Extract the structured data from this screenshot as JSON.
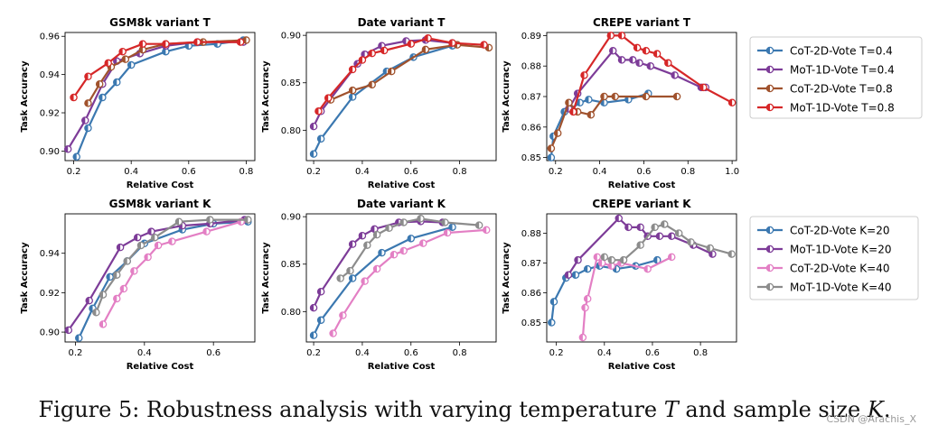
{
  "caption": {
    "prefix": "Figure 5: Robustness analysis with varying temperature ",
    "var_t": "T",
    "middle": " and sample size ",
    "var_k": "K",
    "suffix": "."
  },
  "watermark": "CSDN @Arachis_X",
  "colors": {
    "blue": "#3b78b0",
    "purple": "#7d3c98",
    "orange": "#a0522d",
    "red": "#d62728",
    "pink": "#e37fc4",
    "gray": "#8c8c8c"
  },
  "chart_data": [
    {
      "type": "line",
      "title": "GSM8k variant T",
      "xlabel": "Relative Cost",
      "ylabel": "Task Accuracy",
      "xlim": [
        0.17,
        0.83
      ],
      "ylim": [
        0.895,
        0.962
      ],
      "xticks": [
        0.2,
        0.4,
        0.6,
        0.8
      ],
      "xtick_labels": [
        "0.2",
        "0.4",
        "0.6",
        "0.8"
      ],
      "yticks": [
        0.9,
        0.92,
        0.94,
        0.96
      ],
      "ytick_labels": [
        "0.90",
        "0.92",
        "0.94",
        "0.96"
      ],
      "series": [
        {
          "name": "CoT-2D-Vote T=0.4",
          "color": "blue",
          "x": [
            0.21,
            0.25,
            0.3,
            0.35,
            0.4,
            0.52,
            0.6,
            0.7,
            0.79
          ],
          "y": [
            0.897,
            0.912,
            0.928,
            0.936,
            0.945,
            0.952,
            0.955,
            0.956,
            0.958
          ]
        },
        {
          "name": "MoT-1D-Vote T=0.4",
          "color": "purple",
          "x": [
            0.18,
            0.24,
            0.3,
            0.35,
            0.43,
            0.52,
            0.63,
            0.79
          ],
          "y": [
            0.901,
            0.916,
            0.935,
            0.947,
            0.951,
            0.955,
            0.957,
            0.957
          ]
        },
        {
          "name": "CoT-2D-Vote T=0.8",
          "color": "orange",
          "x": [
            0.25,
            0.29,
            0.33,
            0.38,
            0.44,
            0.52,
            0.65,
            0.8
          ],
          "y": [
            0.925,
            0.935,
            0.944,
            0.948,
            0.953,
            0.956,
            0.957,
            0.958
          ]
        },
        {
          "name": "MoT-1D-Vote T=0.8",
          "color": "red",
          "x": [
            0.2,
            0.25,
            0.32,
            0.37,
            0.44,
            0.52,
            0.63,
            0.78
          ],
          "y": [
            0.928,
            0.939,
            0.946,
            0.952,
            0.956,
            0.956,
            0.957,
            0.957
          ]
        }
      ]
    },
    {
      "type": "line",
      "title": "Date variant T",
      "xlabel": "Relative Cost",
      "ylabel": "Task Accuracy",
      "xlim": [
        0.17,
        0.95
      ],
      "ylim": [
        0.768,
        0.903
      ],
      "xticks": [
        0.2,
        0.4,
        0.6,
        0.8
      ],
      "xtick_labels": [
        "0.2",
        "0.4",
        "0.6",
        "0.8"
      ],
      "yticks": [
        0.8,
        0.85,
        0.9
      ],
      "ytick_labels": [
        "0.80",
        "0.85",
        "0.90"
      ],
      "series": [
        {
          "name": "CoT-2D-Vote T=0.4",
          "color": "blue",
          "x": [
            0.2,
            0.23,
            0.36,
            0.5,
            0.61,
            0.77
          ],
          "y": [
            0.775,
            0.791,
            0.835,
            0.862,
            0.877,
            0.889
          ]
        },
        {
          "name": "MoT-1D-Vote T=0.4",
          "color": "purple",
          "x": [
            0.2,
            0.23,
            0.38,
            0.41,
            0.48,
            0.58,
            0.66,
            0.77
          ],
          "y": [
            0.804,
            0.82,
            0.87,
            0.88,
            0.889,
            0.894,
            0.895,
            0.892
          ]
        },
        {
          "name": "CoT-2D-Vote T=0.8",
          "color": "orange",
          "x": [
            0.27,
            0.36,
            0.44,
            0.52,
            0.66,
            0.79,
            0.92
          ],
          "y": [
            0.832,
            0.842,
            0.848,
            0.862,
            0.885,
            0.89,
            0.887
          ]
        },
        {
          "name": "MoT-1D-Vote T=0.8",
          "color": "red",
          "x": [
            0.22,
            0.26,
            0.36,
            0.4,
            0.44,
            0.49,
            0.6,
            0.67,
            0.77,
            0.9
          ],
          "y": [
            0.82,
            0.834,
            0.864,
            0.874,
            0.881,
            0.884,
            0.891,
            0.897,
            0.892,
            0.89
          ]
        }
      ]
    },
    {
      "type": "line",
      "title": "CREPE variant T",
      "xlabel": "Relative Cost",
      "ylabel": "Task Accuracy",
      "xlim": [
        0.16,
        1.02
      ],
      "ylim": [
        0.849,
        0.891
      ],
      "xticks": [
        0.2,
        0.4,
        0.6,
        0.8,
        1.0
      ],
      "xtick_labels": [
        "0.2",
        "0.4",
        "0.6",
        "0.8",
        "1.0"
      ],
      "yticks": [
        0.85,
        0.86,
        0.87,
        0.88,
        0.89
      ],
      "ytick_labels": [
        "0.85",
        "0.86",
        "0.87",
        "0.88",
        "0.89"
      ],
      "series": [
        {
          "name": "CoT-2D-Vote T=0.4",
          "color": "blue",
          "x": [
            0.18,
            0.19,
            0.24,
            0.27,
            0.31,
            0.35,
            0.42,
            0.53,
            0.62
          ],
          "y": [
            0.85,
            0.857,
            0.865,
            0.866,
            0.868,
            0.869,
            0.868,
            0.869,
            0.871
          ]
        },
        {
          "name": "MoT-1D-Vote T=0.4",
          "color": "purple",
          "x": [
            0.26,
            0.3,
            0.46,
            0.5,
            0.55,
            0.58,
            0.63,
            0.74,
            0.86,
            0.88
          ],
          "y": [
            0.866,
            0.871,
            0.885,
            0.882,
            0.882,
            0.881,
            0.88,
            0.877,
            0.873,
            0.873
          ]
        },
        {
          "name": "CoT-2D-Vote T=0.8",
          "color": "orange",
          "x": [
            0.18,
            0.21,
            0.26,
            0.3,
            0.36,
            0.42,
            0.47,
            0.61,
            0.75
          ],
          "y": [
            0.853,
            0.858,
            0.868,
            0.865,
            0.864,
            0.87,
            0.87,
            0.87,
            0.87
          ]
        },
        {
          "name": "MoT-1D-Vote T=0.8",
          "color": "red",
          "x": [
            0.28,
            0.33,
            0.45,
            0.5,
            0.57,
            0.61,
            0.66,
            0.71,
            0.87,
            1.0
          ],
          "y": [
            0.865,
            0.877,
            0.89,
            0.89,
            0.886,
            0.885,
            0.884,
            0.881,
            0.873,
            0.868
          ]
        }
      ]
    },
    {
      "type": "line",
      "title": "GSM8k variant K",
      "xlabel": "Relative Cost",
      "ylabel": "Task Accuracy",
      "xlim": [
        0.17,
        0.72
      ],
      "ylim": [
        0.895,
        0.96
      ],
      "xticks": [
        0.2,
        0.4,
        0.6
      ],
      "xtick_labels": [
        "0.2",
        "0.4",
        "0.6"
      ],
      "yticks": [
        0.9,
        0.92,
        0.94
      ],
      "ytick_labels": [
        "0.90",
        "0.92",
        "0.94"
      ],
      "series": [
        {
          "name": "CoT-2D-Vote K=20",
          "color": "blue",
          "x": [
            0.21,
            0.25,
            0.3,
            0.35,
            0.4,
            0.51,
            0.6,
            0.7
          ],
          "y": [
            0.897,
            0.912,
            0.928,
            0.936,
            0.945,
            0.952,
            0.955,
            0.956
          ]
        },
        {
          "name": "MoT-1D-Vote K=20",
          "color": "purple",
          "x": [
            0.18,
            0.24,
            0.33,
            0.38,
            0.42,
            0.51,
            0.59,
            0.69
          ],
          "y": [
            0.901,
            0.916,
            0.943,
            0.948,
            0.951,
            0.954,
            0.955,
            0.957
          ]
        },
        {
          "name": "CoT-2D-Vote K=40",
          "color": "pink",
          "x": [
            0.28,
            0.32,
            0.34,
            0.37,
            0.41,
            0.44,
            0.48,
            0.58,
            0.68
          ],
          "y": [
            0.904,
            0.917,
            0.922,
            0.931,
            0.938,
            0.944,
            0.946,
            0.951,
            0.956
          ]
        },
        {
          "name": "MoT-1D-Vote K=40",
          "color": "gray",
          "x": [
            0.26,
            0.28,
            0.32,
            0.35,
            0.39,
            0.43,
            0.5,
            0.59,
            0.7
          ],
          "y": [
            0.91,
            0.919,
            0.929,
            0.936,
            0.944,
            0.948,
            0.956,
            0.957,
            0.957
          ]
        }
      ]
    },
    {
      "type": "line",
      "title": "Date variant K",
      "xlabel": "Relative Cost",
      "ylabel": "Task Accuracy",
      "xlim": [
        0.17,
        0.95
      ],
      "ylim": [
        0.768,
        0.903
      ],
      "xticks": [
        0.2,
        0.4,
        0.6,
        0.8
      ],
      "xtick_labels": [
        "0.2",
        "0.4",
        "0.6",
        "0.8"
      ],
      "yticks": [
        0.8,
        0.85,
        0.9
      ],
      "ytick_labels": [
        "0.80",
        "0.85",
        "0.90"
      ],
      "series": [
        {
          "name": "CoT-2D-Vote K=20",
          "color": "blue",
          "x": [
            0.2,
            0.23,
            0.36,
            0.48,
            0.6,
            0.77
          ],
          "y": [
            0.775,
            0.791,
            0.835,
            0.862,
            0.877,
            0.889
          ]
        },
        {
          "name": "MoT-1D-Vote K=20",
          "color": "purple",
          "x": [
            0.2,
            0.23,
            0.36,
            0.4,
            0.45,
            0.55,
            0.64,
            0.73
          ],
          "y": [
            0.804,
            0.821,
            0.871,
            0.88,
            0.887,
            0.894,
            0.895,
            0.894
          ]
        },
        {
          "name": "CoT-2D-Vote K=40",
          "color": "pink",
          "x": [
            0.28,
            0.32,
            0.41,
            0.46,
            0.53,
            0.57,
            0.65,
            0.75,
            0.91
          ],
          "y": [
            0.777,
            0.796,
            0.832,
            0.845,
            0.86,
            0.864,
            0.872,
            0.883,
            0.886
          ]
        },
        {
          "name": "MoT-1D-Vote K=40",
          "color": "gray",
          "x": [
            0.31,
            0.35,
            0.42,
            0.46,
            0.51,
            0.57,
            0.64,
            0.74,
            0.88
          ],
          "y": [
            0.835,
            0.843,
            0.87,
            0.881,
            0.888,
            0.894,
            0.898,
            0.894,
            0.891
          ]
        }
      ]
    },
    {
      "type": "line",
      "title": "CREPE variant K",
      "xlabel": "Relative Cost",
      "ylabel": "Task Accuracy",
      "xlim": [
        0.16,
        0.95
      ],
      "ylim": [
        0.8435,
        0.8865
      ],
      "xticks": [
        0.2,
        0.4,
        0.6,
        0.8
      ],
      "xtick_labels": [
        "0.2",
        "0.4",
        "0.6",
        "0.8"
      ],
      "yticks": [
        0.85,
        0.86,
        0.87,
        0.88
      ],
      "ytick_labels": [
        "0.85",
        "0.86",
        "0.87",
        "0.88"
      ],
      "series": [
        {
          "name": "CoT-2D-Vote K=20",
          "color": "blue",
          "x": [
            0.18,
            0.19,
            0.24,
            0.28,
            0.33,
            0.38,
            0.45,
            0.53,
            0.62
          ],
          "y": [
            0.85,
            0.857,
            0.865,
            0.866,
            0.868,
            0.869,
            0.868,
            0.869,
            0.871
          ]
        },
        {
          "name": "MoT-1D-Vote K=20",
          "color": "purple",
          "x": [
            0.25,
            0.29,
            0.46,
            0.5,
            0.55,
            0.58,
            0.63,
            0.68,
            0.77,
            0.85
          ],
          "y": [
            0.866,
            0.871,
            0.885,
            0.882,
            0.882,
            0.879,
            0.879,
            0.879,
            0.876,
            0.873
          ]
        },
        {
          "name": "CoT-2D-Vote K=40",
          "color": "pink",
          "x": [
            0.31,
            0.32,
            0.33,
            0.37,
            0.39,
            0.43,
            0.47,
            0.58,
            0.68
          ],
          "y": [
            0.845,
            0.855,
            0.858,
            0.872,
            0.87,
            0.869,
            0.87,
            0.868,
            0.872
          ]
        },
        {
          "name": "MoT-1D-Vote K=40",
          "color": "gray",
          "x": [
            0.4,
            0.43,
            0.48,
            0.55,
            0.61,
            0.65,
            0.71,
            0.76,
            0.84,
            0.93
          ],
          "y": [
            0.872,
            0.871,
            0.871,
            0.876,
            0.882,
            0.883,
            0.88,
            0.877,
            0.875,
            0.873
          ]
        }
      ]
    }
  ],
  "legends": [
    [
      "CoT-2D-Vote T=0.4",
      "MoT-1D-Vote T=0.4",
      "CoT-2D-Vote T=0.8",
      "MoT-1D-Vote T=0.8"
    ],
    [
      "CoT-2D-Vote K=20",
      "MoT-1D-Vote K=20",
      "CoT-2D-Vote K=40",
      "MoT-1D-Vote K=40"
    ]
  ],
  "legend_colors": [
    [
      "blue",
      "purple",
      "orange",
      "red"
    ],
    [
      "blue",
      "purple",
      "pink",
      "gray"
    ]
  ]
}
